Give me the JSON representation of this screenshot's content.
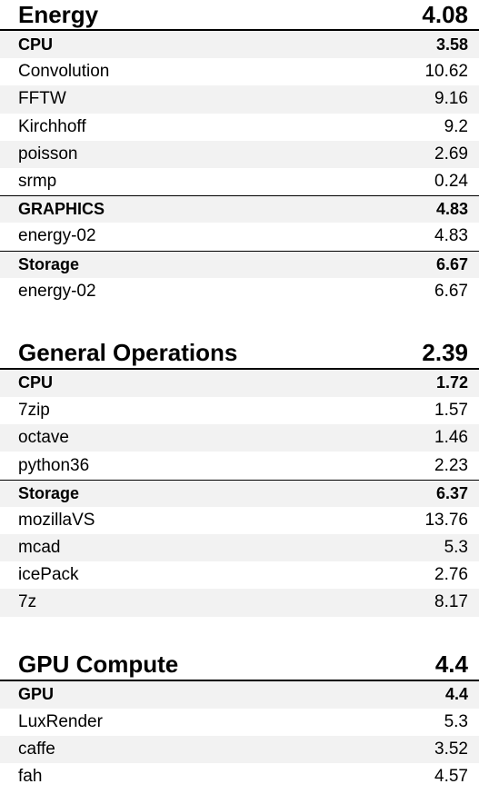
{
  "sections": [
    {
      "title": "Energy",
      "score": "4.08",
      "rows": [
        {
          "label": "CPU",
          "value": "3.58",
          "group": true
        },
        {
          "label": "Convolution",
          "value": "10.62"
        },
        {
          "label": "FFTW",
          "value": "9.16"
        },
        {
          "label": "Kirchhoff",
          "value": "9.2"
        },
        {
          "label": "poisson",
          "value": "2.69"
        },
        {
          "label": "srmp",
          "value": "0.24"
        },
        {
          "label": "GRAPHICS",
          "value": "4.83",
          "group": true
        },
        {
          "label": "energy-02",
          "value": "4.83"
        },
        {
          "label": "Storage",
          "value": "6.67",
          "group": true
        },
        {
          "label": "energy-02",
          "value": "6.67"
        }
      ]
    },
    {
      "title": "General Operations",
      "score": "2.39",
      "rows": [
        {
          "label": "CPU",
          "value": "1.72",
          "group": true
        },
        {
          "label": "7zip",
          "value": "1.57"
        },
        {
          "label": "octave",
          "value": "1.46"
        },
        {
          "label": "python36",
          "value": "2.23"
        },
        {
          "label": "Storage",
          "value": "6.37",
          "group": true
        },
        {
          "label": "mozillaVS",
          "value": "13.76"
        },
        {
          "label": "mcad",
          "value": "5.3"
        },
        {
          "label": "icePack",
          "value": "2.76"
        },
        {
          "label": "7z",
          "value": "8.17"
        }
      ]
    },
    {
      "title": "GPU Compute",
      "score": "4.4",
      "rows": [
        {
          "label": "GPU",
          "value": "4.4",
          "group": true
        },
        {
          "label": "LuxRender",
          "value": "5.3"
        },
        {
          "label": "caffe",
          "value": "3.52"
        },
        {
          "label": "fah",
          "value": "4.57"
        }
      ]
    }
  ]
}
